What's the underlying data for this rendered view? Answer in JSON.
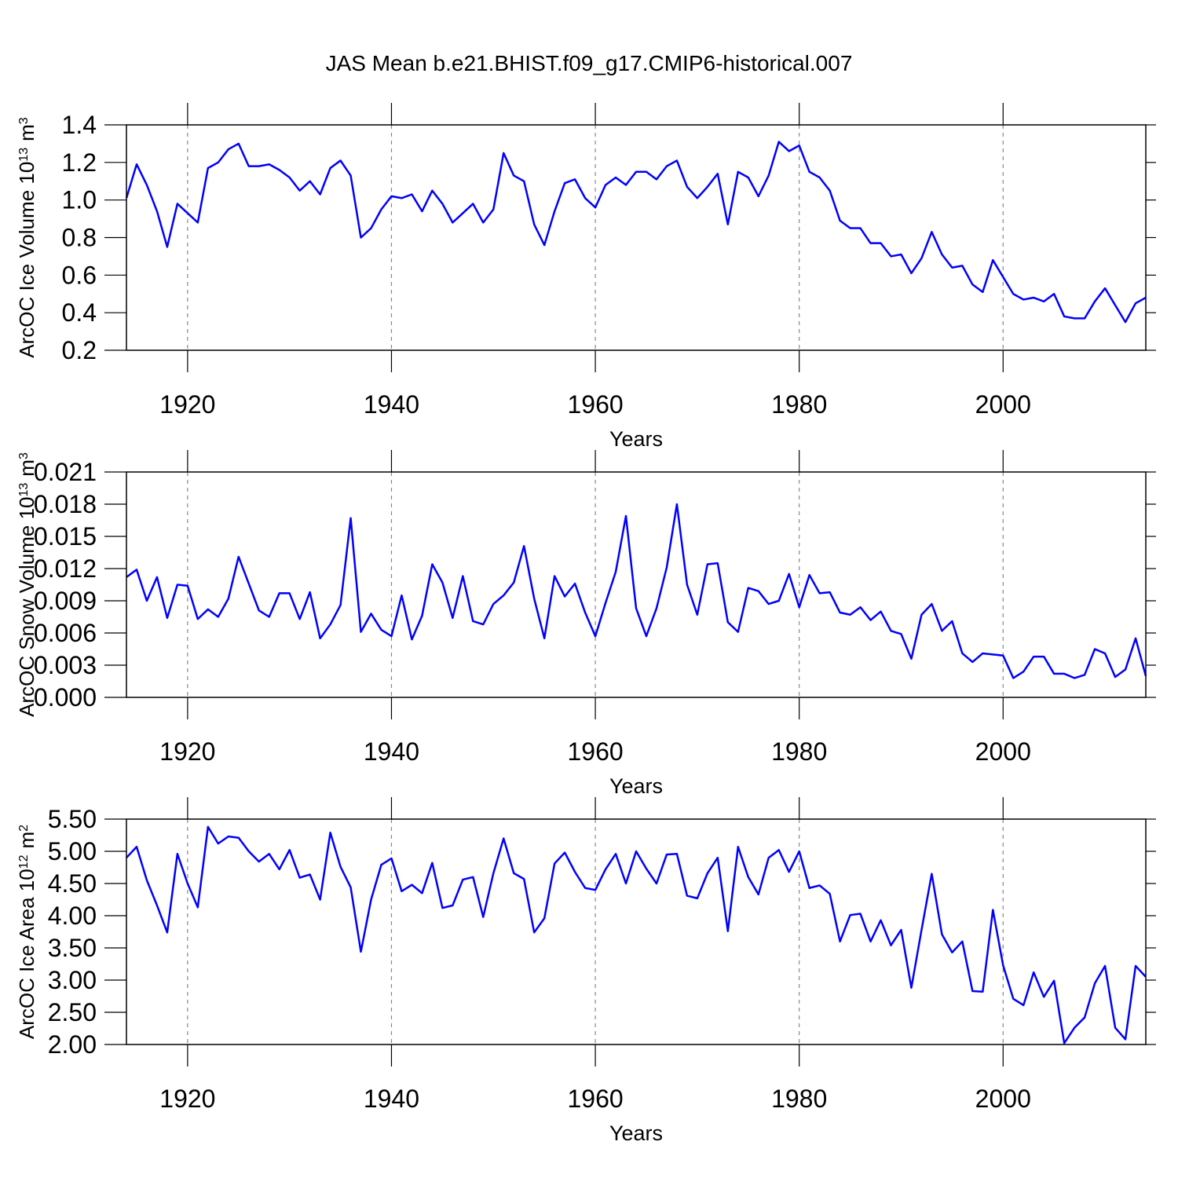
{
  "chart_data": [
    {
      "type": "line",
      "title": "JAS Mean b.e21.BHIST.f09_g17.CMIP6-historical.007",
      "ylabel": [
        "ArcOC Ice Volume 10",
        "13",
        "m",
        "3"
      ],
      "xlabel": "Years",
      "xlim": [
        1914,
        2014
      ],
      "xticks": [
        1920,
        1940,
        1960,
        1980,
        2000
      ],
      "grid": true,
      "ylim": [
        0.2,
        1.4
      ],
      "yticks": [
        0.2,
        0.4,
        0.6,
        0.8,
        {
          "value": 1,
          "label": "1.0"
        },
        1.2,
        1.4
      ],
      "color": "#0000ff",
      "x": [
        1914,
        1915,
        1916,
        1917,
        1918,
        1919,
        1920,
        1921,
        1922,
        1923,
        1924,
        1925,
        1926,
        1927,
        1928,
        1929,
        1930,
        1931,
        1932,
        1933,
        1934,
        1935,
        1936,
        1937,
        1938,
        1939,
        1940,
        1941,
        1942,
        1943,
        1944,
        1945,
        1946,
        1947,
        1948,
        1949,
        1950,
        1951,
        1952,
        1953,
        1954,
        1955,
        1956,
        1957,
        1958,
        1959,
        1960,
        1961,
        1962,
        1963,
        1964,
        1965,
        1966,
        1967,
        1968,
        1969,
        1970,
        1971,
        1972,
        1973,
        1974,
        1975,
        1976,
        1977,
        1978,
        1979,
        1980,
        1981,
        1982,
        1983,
        1984,
        1985,
        1986,
        1987,
        1988,
        1989,
        1990,
        1991,
        1992,
        1993,
        1994,
        1995,
        1996,
        1997,
        1998,
        1999,
        2000,
        2001,
        2002,
        2003,
        2004,
        2005,
        2006,
        2007,
        2008,
        2009,
        2010,
        2011,
        2012,
        2013,
        2014
      ],
      "values": [
        1.01,
        1.19,
        1.08,
        0.94,
        0.75,
        0.98,
        0.93,
        0.88,
        1.17,
        1.2,
        1.27,
        1.3,
        1.18,
        1.18,
        1.19,
        1.16,
        1.12,
        1.05,
        1.1,
        1.03,
        1.17,
        1.21,
        1.13,
        0.8,
        0.85,
        0.95,
        1.02,
        1.01,
        1.03,
        0.94,
        1.05,
        0.98,
        0.88,
        0.93,
        0.98,
        0.88,
        0.95,
        1.25,
        1.13,
        1.1,
        0.87,
        0.76,
        0.94,
        1.09,
        1.11,
        1.01,
        0.96,
        1.08,
        1.12,
        1.08,
        1.15,
        1.15,
        1.11,
        1.18,
        1.21,
        1.07,
        1.01,
        1.07,
        1.14,
        0.87,
        1.15,
        1.12,
        1.02,
        1.13,
        1.31,
        1.26,
        1.29,
        1.15,
        1.12,
        1.05,
        0.89,
        0.85,
        0.85,
        0.77,
        0.77,
        0.7,
        0.71,
        0.61,
        0.69,
        0.83,
        0.71,
        0.64,
        0.65,
        0.55,
        0.51,
        0.68,
        0.59,
        0.5,
        0.47,
        0.48,
        0.46,
        0.5,
        0.38,
        0.37,
        0.37,
        0.46,
        0.53,
        0.44,
        0.35,
        0.45,
        0.48
      ]
    },
    {
      "type": "line",
      "ylabel": [
        "ArcOC Snow Volume 10",
        "13",
        "m",
        "3"
      ],
      "xlabel": "Years",
      "xlim": [
        1914,
        2014
      ],
      "xticks": [
        1920,
        1940,
        1960,
        1980,
        2000
      ],
      "grid": true,
      "ylim": [
        0,
        0.021
      ],
      "yticks": [
        {
          "value": 0,
          "label": "0.000"
        },
        0.003,
        0.006,
        0.009,
        0.012,
        0.015,
        0.018,
        0.021
      ],
      "color": "#0000ff",
      "x": [
        1914,
        1915,
        1916,
        1917,
        1918,
        1919,
        1920,
        1921,
        1922,
        1923,
        1924,
        1925,
        1926,
        1927,
        1928,
        1929,
        1930,
        1931,
        1932,
        1933,
        1934,
        1935,
        1936,
        1937,
        1938,
        1939,
        1940,
        1941,
        1942,
        1943,
        1944,
        1945,
        1946,
        1947,
        1948,
        1949,
        1950,
        1951,
        1952,
        1953,
        1954,
        1955,
        1956,
        1957,
        1958,
        1959,
        1960,
        1961,
        1962,
        1963,
        1964,
        1965,
        1966,
        1967,
        1968,
        1969,
        1970,
        1971,
        1972,
        1973,
        1974,
        1975,
        1976,
        1977,
        1978,
        1979,
        1980,
        1981,
        1982,
        1983,
        1984,
        1985,
        1986,
        1987,
        1988,
        1989,
        1990,
        1991,
        1992,
        1993,
        1994,
        1995,
        1996,
        1997,
        1998,
        1999,
        2000,
        2001,
        2002,
        2003,
        2004,
        2005,
        2006,
        2007,
        2008,
        2009,
        2010,
        2011,
        2012,
        2013,
        2014
      ],
      "values": [
        0.0112,
        0.0119,
        0.009,
        0.0112,
        0.0074,
        0.0105,
        0.0104,
        0.0073,
        0.0082,
        0.0075,
        0.0092,
        0.0131,
        0.0106,
        0.0081,
        0.0075,
        0.0097,
        0.0097,
        0.0073,
        0.0098,
        0.0055,
        0.0068,
        0.0086,
        0.0167,
        0.0061,
        0.0078,
        0.0063,
        0.0057,
        0.0095,
        0.0054,
        0.0076,
        0.0124,
        0.0107,
        0.0074,
        0.0113,
        0.0071,
        0.0068,
        0.0087,
        0.0095,
        0.0107,
        0.0141,
        0.0092,
        0.0055,
        0.0113,
        0.0094,
        0.0106,
        0.0079,
        0.0057,
        0.0088,
        0.0117,
        0.0169,
        0.0083,
        0.0057,
        0.0083,
        0.0121,
        0.018,
        0.0105,
        0.0077,
        0.0124,
        0.0125,
        0.007,
        0.0061,
        0.0102,
        0.0099,
        0.0087,
        0.009,
        0.0115,
        0.0084,
        0.0114,
        0.0097,
        0.0098,
        0.0079,
        0.0077,
        0.0084,
        0.0072,
        0.008,
        0.0062,
        0.0059,
        0.0036,
        0.0077,
        0.0087,
        0.0062,
        0.0071,
        0.0041,
        0.0033,
        0.0041,
        0.004,
        0.0039,
        0.0018,
        0.0024,
        0.0038,
        0.0038,
        0.0022,
        0.0022,
        0.0018,
        0.0021,
        0.0045,
        0.0041,
        0.0019,
        0.0026,
        0.0055,
        0.002
      ]
    },
    {
      "type": "line",
      "ylabel": [
        "ArcOC Ice Area 10",
        "12",
        "m",
        "2"
      ],
      "xlabel": "Years",
      "xlim": [
        1914,
        2014
      ],
      "xticks": [
        1920,
        1940,
        1960,
        1980,
        2000
      ],
      "grid": true,
      "ylim": [
        2,
        5.5
      ],
      "yticks": [
        {
          "value": 2,
          "label": "2.00"
        },
        {
          "value": 2.5,
          "label": "2.50"
        },
        {
          "value": 3,
          "label": "3.00"
        },
        {
          "value": 3.5,
          "label": "3.50"
        },
        {
          "value": 4,
          "label": "4.00"
        },
        {
          "value": 4.5,
          "label": "4.50"
        },
        {
          "value": 5,
          "label": "5.00"
        },
        {
          "value": 5.5,
          "label": "5.50"
        }
      ],
      "color": "#0000ff",
      "x": [
        1914,
        1915,
        1916,
        1917,
        1918,
        1919,
        1920,
        1921,
        1922,
        1923,
        1924,
        1925,
        1926,
        1927,
        1928,
        1929,
        1930,
        1931,
        1932,
        1933,
        1934,
        1935,
        1936,
        1937,
        1938,
        1939,
        1940,
        1941,
        1942,
        1943,
        1944,
        1945,
        1946,
        1947,
        1948,
        1949,
        1950,
        1951,
        1952,
        1953,
        1954,
        1955,
        1956,
        1957,
        1958,
        1959,
        1960,
        1961,
        1962,
        1963,
        1964,
        1965,
        1966,
        1967,
        1968,
        1969,
        1970,
        1971,
        1972,
        1973,
        1974,
        1975,
        1976,
        1977,
        1978,
        1979,
        1980,
        1981,
        1982,
        1983,
        1984,
        1985,
        1986,
        1987,
        1988,
        1989,
        1990,
        1991,
        1992,
        1993,
        1994,
        1995,
        1996,
        1997,
        1998,
        1999,
        2000,
        2001,
        2002,
        2003,
        2004,
        2005,
        2006,
        2007,
        2008,
        2009,
        2010,
        2011,
        2012,
        2013,
        2014
      ],
      "values": [
        4.9,
        5.07,
        4.55,
        4.16,
        3.74,
        4.96,
        4.5,
        4.13,
        5.38,
        5.12,
        5.23,
        5.21,
        5,
        4.84,
        4.96,
        4.72,
        5.02,
        4.59,
        4.64,
        4.25,
        5.29,
        4.76,
        4.44,
        3.44,
        4.25,
        4.79,
        4.89,
        4.38,
        4.48,
        4.35,
        4.82,
        4.12,
        4.16,
        4.56,
        4.6,
        3.98,
        4.66,
        5.2,
        4.66,
        4.57,
        3.74,
        3.96,
        4.81,
        4.98,
        4.68,
        4.43,
        4.4,
        4.72,
        4.96,
        4.5,
        5,
        4.73,
        4.5,
        4.95,
        4.96,
        4.31,
        4.27,
        4.66,
        4.9,
        3.76,
        5.07,
        4.6,
        4.33,
        4.9,
        5.02,
        4.68,
        5,
        4.43,
        4.47,
        4.34,
        3.6,
        4.01,
        4.03,
        3.6,
        3.93,
        3.54,
        3.78,
        2.88,
        3.78,
        4.65,
        3.71,
        3.43,
        3.6,
        2.83,
        2.82,
        4.09,
        3.23,
        2.71,
        2.61,
        3.12,
        2.74,
        2.99,
        2.02,
        2.26,
        2.42,
        2.95,
        3.22,
        2.26,
        2.08,
        3.22,
        3.05
      ]
    }
  ]
}
